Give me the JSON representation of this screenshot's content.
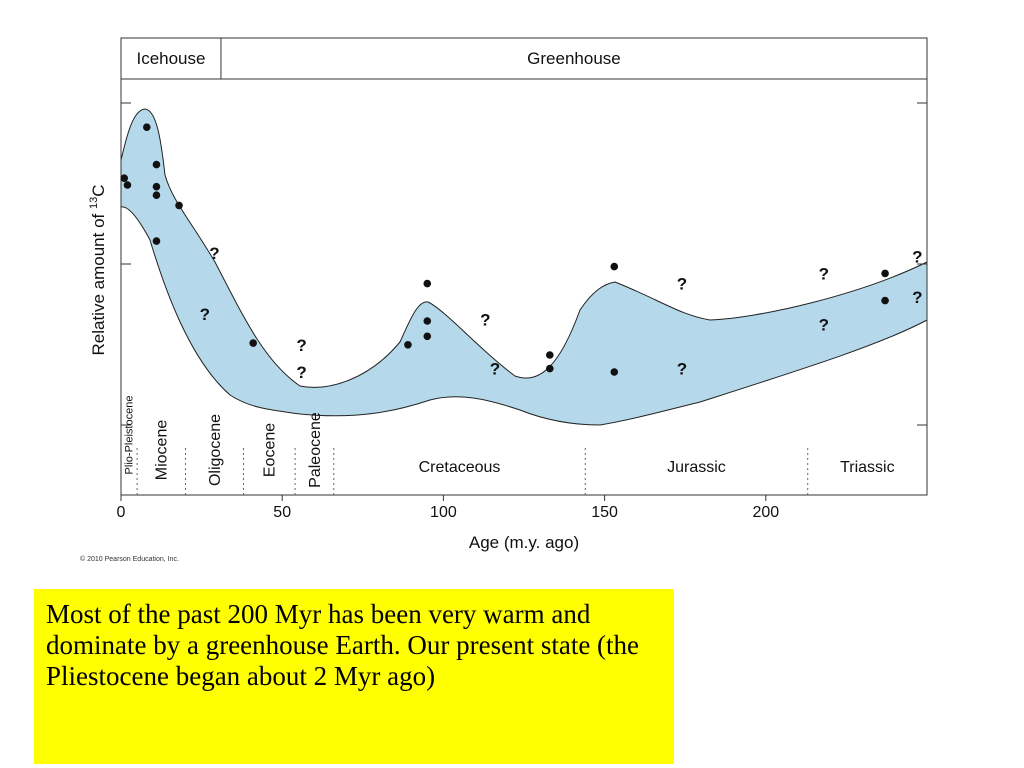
{
  "chart_data": {
    "type": "scatter",
    "title": "",
    "climate_bands": [
      {
        "label": "Icehouse",
        "from": 0,
        "to": 31
      },
      {
        "label": "Greenhouse",
        "from": 31,
        "to": 250
      }
    ],
    "xlabel": "Age (m.y. ago)",
    "ylabel_prefix": "Relative amount of ",
    "ylabel_sup": "13",
    "ylabel_suffix": "C",
    "xlim": [
      0,
      250
    ],
    "x_ticks": [
      "0",
      "50",
      "100",
      "150",
      "200"
    ],
    "x_tick_values": [
      0,
      50,
      100,
      150,
      200
    ],
    "y_ticks_labeled": false,
    "periods": [
      {
        "label": "Plio-Pleistocene",
        "from": 0,
        "to": 5,
        "vertical": true
      },
      {
        "label": "Miocene",
        "from": 5,
        "to": 20,
        "vertical": true
      },
      {
        "label": "Oligocene",
        "from": 20,
        "to": 38,
        "vertical": true
      },
      {
        "label": "Eocene",
        "from": 38,
        "to": 54,
        "vertical": true
      },
      {
        "label": "Paleocene",
        "from": 54,
        "to": 66,
        "vertical": true
      },
      {
        "label": "Cretaceous",
        "from": 66,
        "to": 144,
        "vertical": false
      },
      {
        "label": "Jurassic",
        "from": 144,
        "to": 213,
        "vertical": false
      },
      {
        "label": "Triassic",
        "from": 213,
        "to": 250,
        "vertical": false
      }
    ],
    "band_fill": "#b5d9ea",
    "points": [
      {
        "x": 1,
        "y": 7.7
      },
      {
        "x": 2,
        "y": 7.5
      },
      {
        "x": 8,
        "y": 9.2
      },
      {
        "x": 11,
        "y": 8.1
      },
      {
        "x": 11,
        "y": 7.45
      },
      {
        "x": 11,
        "y": 7.2
      },
      {
        "x": 18,
        "y": 6.9
      },
      {
        "x": 11,
        "y": 5.85
      },
      {
        "x": 41,
        "y": 2.85
      },
      {
        "x": 89,
        "y": 2.8
      },
      {
        "x": 95,
        "y": 4.6
      },
      {
        "x": 95,
        "y": 3.5
      },
      {
        "x": 95,
        "y": 3.05
      },
      {
        "x": 133,
        "y": 2.5
      },
      {
        "x": 133,
        "y": 2.1
      },
      {
        "x": 153,
        "y": 5.1
      },
      {
        "x": 153,
        "y": 2.0
      },
      {
        "x": 237,
        "y": 4.9
      },
      {
        "x": 237,
        "y": 4.1
      }
    ],
    "uncertain_points": [
      {
        "x": 29,
        "y": 5.5
      },
      {
        "x": 26,
        "y": 3.7
      },
      {
        "x": 56,
        "y": 2.8
      },
      {
        "x": 56,
        "y": 2.0
      },
      {
        "x": 113,
        "y": 3.55
      },
      {
        "x": 116,
        "y": 2.1
      },
      {
        "x": 174,
        "y": 4.6
      },
      {
        "x": 174,
        "y": 2.1
      },
      {
        "x": 218,
        "y": 4.9
      },
      {
        "x": 218,
        "y": 3.4
      },
      {
        "x": 247,
        "y": 5.4
      },
      {
        "x": 247,
        "y": 4.2
      }
    ],
    "uncertain_marker": "?"
  },
  "copyright": "© 2010 Pearson Education, Inc.",
  "callout": {
    "text": "Most of the past 200 Myr has been very warm and dominate by a greenhouse Earth. Our present state (the Pliestocene began about 2 Myr ago)",
    "background": "#ffff00"
  }
}
